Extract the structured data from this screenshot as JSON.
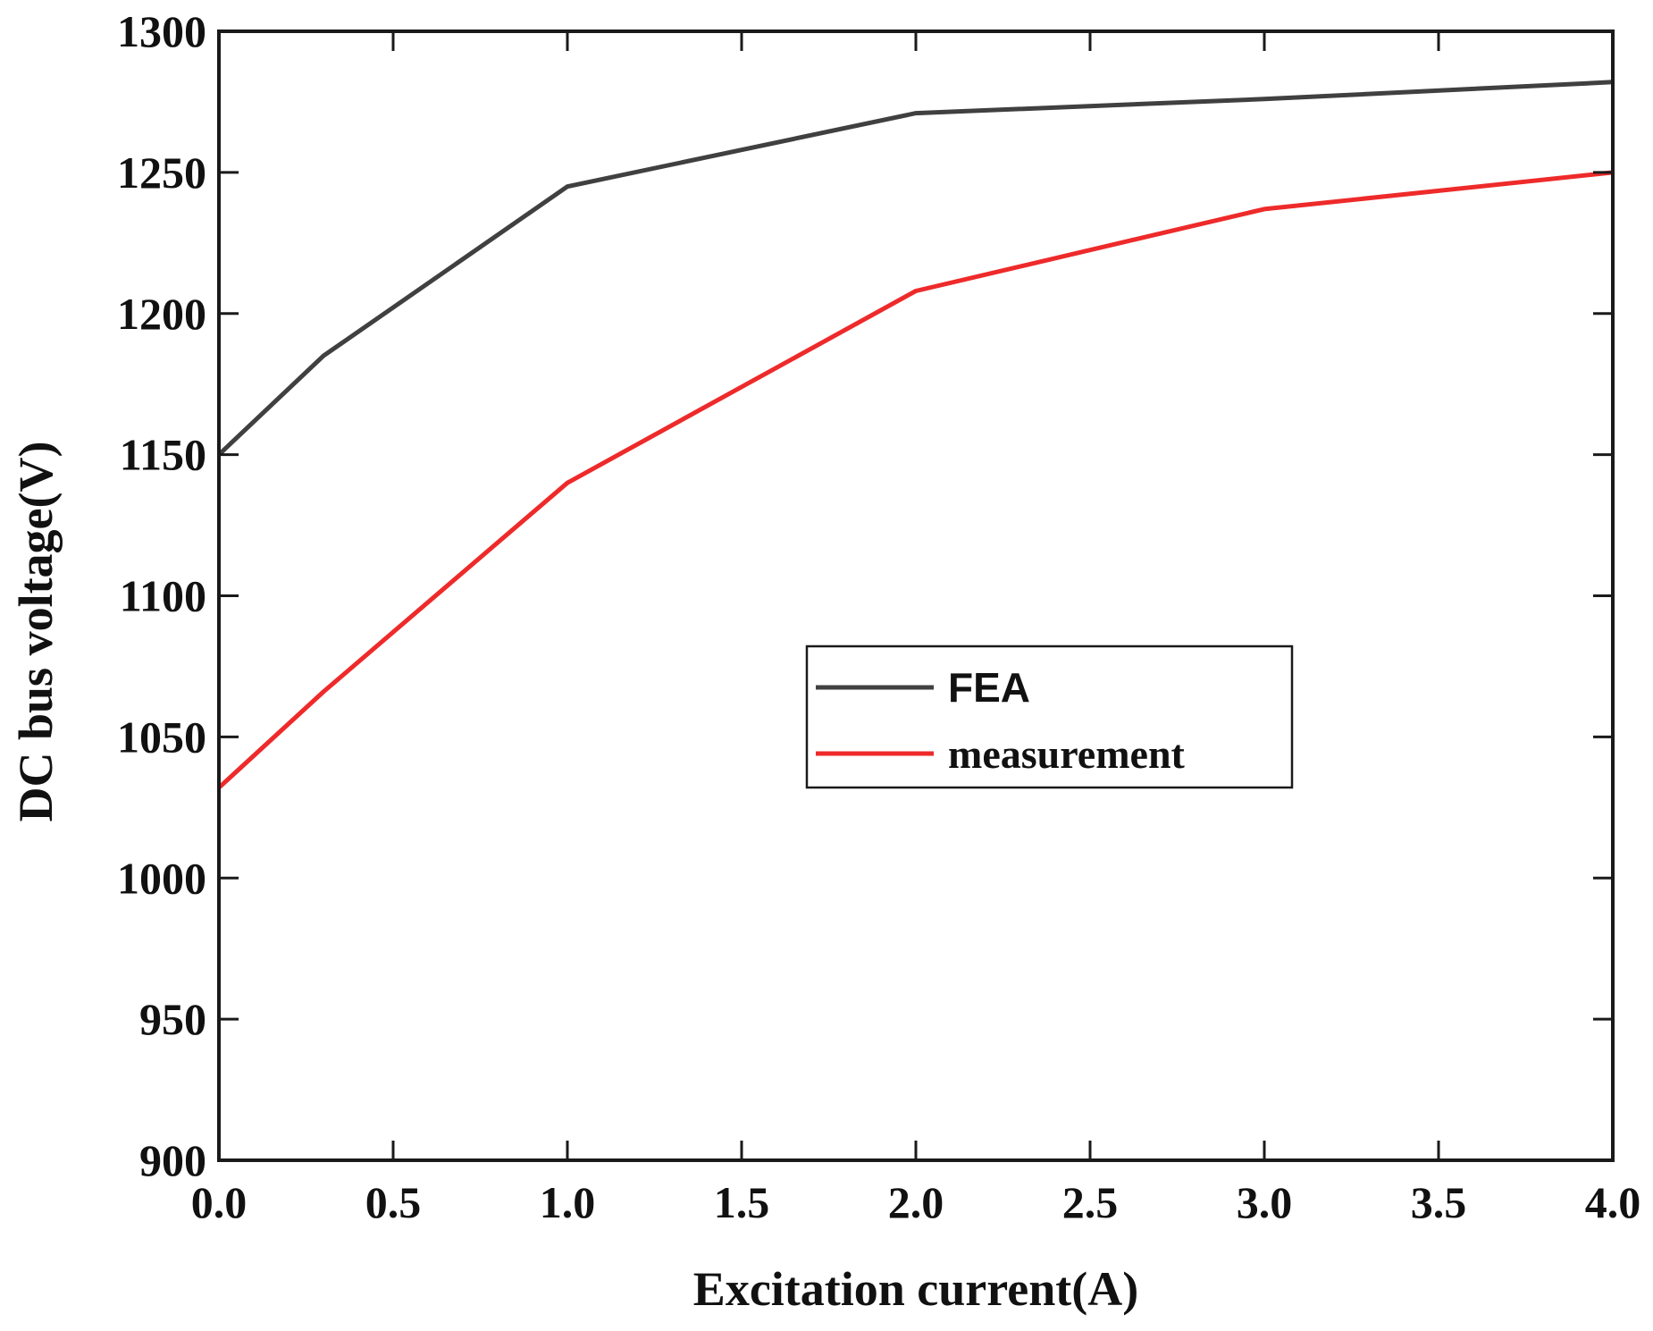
{
  "chart_data": {
    "type": "line",
    "title": "",
    "xlabel": "Excitation current(A)",
    "ylabel": "DC bus voltage(V)",
    "xlim": [
      0.0,
      4.0
    ],
    "ylim": [
      900,
      1300
    ],
    "xticks": [
      "0.0",
      "0.5",
      "1.0",
      "1.5",
      "2.0",
      "2.5",
      "3.0",
      "3.5",
      "4.0"
    ],
    "yticks": [
      "900",
      "950",
      "1000",
      "1050",
      "1100",
      "1150",
      "1200",
      "1250",
      "1300"
    ],
    "grid": false,
    "legend_position": "center-right",
    "series": [
      {
        "name": "FEA",
        "color": "#404040",
        "x": [
          0.0,
          0.3,
          1.0,
          2.0,
          3.0,
          4.0
        ],
        "y": [
          1150,
          1185,
          1245,
          1271,
          1276,
          1282
        ]
      },
      {
        "name": "measurement",
        "color": "#ee2a2a",
        "x": [
          0.0,
          0.3,
          1.0,
          2.0,
          3.0,
          4.0
        ],
        "y": [
          1032,
          1066,
          1140,
          1208,
          1237,
          1250
        ]
      }
    ]
  }
}
